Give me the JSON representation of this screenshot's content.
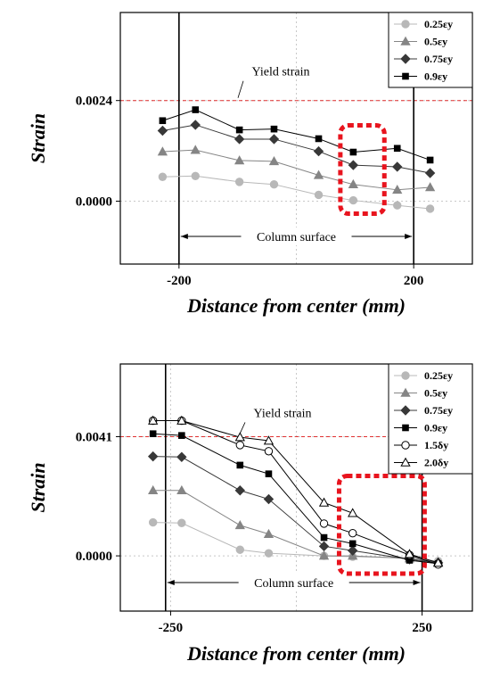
{
  "colors": {
    "yield_line": "#e03030",
    "highlight_box": "#e8141e",
    "grid": "#c8c8c8",
    "axis": "#000000"
  },
  "chart_data": [
    {
      "type": "line",
      "xlabel": "Distance from center (mm)",
      "ylabel": "Strain",
      "x_ticks": [
        -200,
        200
      ],
      "x_tick_labels": [
        "-200",
        "200"
      ],
      "y_ticks": [
        0.0,
        0.0024
      ],
      "y_tick_labels": [
        "0.0000",
        "0.0024"
      ],
      "xlim": [
        -300,
        300
      ],
      "ylim": [
        -0.0015,
        0.0045
      ],
      "grid": true,
      "legend_position": "top-right",
      "reference_line": {
        "label": "Yield strain",
        "y": 0.0024
      },
      "column_lines": [
        -200,
        200
      ],
      "column_annotation": "Column surface",
      "highlight_x_range": [
        75,
        150
      ],
      "series": [
        {
          "name": "0.25εy",
          "marker": "circle",
          "color": "#b8b8b8",
          "x": [
            -228,
            -172,
            -97,
            -38,
            38,
            97,
            172,
            228
          ],
          "values": [
            0.00058,
            0.0006,
            0.00046,
            0.0004,
            0.00015,
            2e-05,
            -0.0001,
            -0.00018
          ]
        },
        {
          "name": "0.5εy",
          "marker": "triangle",
          "color": "#858585",
          "x": [
            -228,
            -172,
            -97,
            -38,
            38,
            97,
            172,
            228
          ],
          "values": [
            0.00118,
            0.00122,
            0.00097,
            0.00095,
            0.00062,
            0.0004,
            0.00027,
            0.00033
          ]
        },
        {
          "name": "0.75εy",
          "marker": "diamond",
          "color": "#383838",
          "x": [
            -228,
            -172,
            -97,
            -38,
            38,
            97,
            172,
            228
          ],
          "values": [
            0.00168,
            0.00182,
            0.00148,
            0.00148,
            0.00119,
            0.00086,
            0.00082,
            0.00067
          ]
        },
        {
          "name": "0.9εy",
          "marker": "square",
          "color": "#000000",
          "x": [
            -228,
            -172,
            -97,
            -38,
            38,
            97,
            172,
            228
          ],
          "values": [
            0.00192,
            0.00218,
            0.0017,
            0.00172,
            0.00149,
            0.00117,
            0.00126,
            0.00098
          ]
        }
      ]
    },
    {
      "type": "line",
      "xlabel": "Distance from center (mm)",
      "ylabel": "Strain",
      "x_ticks": [
        -250,
        250
      ],
      "x_tick_labels": [
        "-250",
        "250"
      ],
      "y_ticks": [
        0.0,
        0.0041
      ],
      "y_tick_labels": [
        "0.0000",
        "0.0041"
      ],
      "xlim": [
        -350,
        350
      ],
      "ylim": [
        -0.0019,
        0.0066
      ],
      "grid": true,
      "legend_position": "top-right",
      "reference_line": {
        "label": "Yield strain",
        "y": 0.0041
      },
      "column_lines": [
        -260,
        250
      ],
      "column_annotation": "Column surface",
      "highlight_x_range": [
        85,
        255
      ],
      "series": [
        {
          "name": "0.25εy",
          "marker": "circle",
          "color": "#b8b8b8",
          "x": [
            -285,
            -228,
            -112,
            -55,
            55,
            112,
            225,
            282
          ],
          "values": [
            0.00115,
            0.00113,
            0.00021,
            9e-05,
            0.0,
            -3e-05,
            -7e-05,
            -0.00018
          ]
        },
        {
          "name": "0.5εy",
          "marker": "triangle",
          "color": "#858585",
          "x": [
            -285,
            -228,
            -112,
            -55,
            55,
            112,
            225,
            282
          ],
          "values": [
            0.00225,
            0.00225,
            0.00105,
            0.00075,
            0.0,
            0.0,
            -9e-05,
            -0.00021
          ]
        },
        {
          "name": "0.75εy",
          "marker": "diamond",
          "color": "#383838",
          "x": [
            -285,
            -228,
            -112,
            -55,
            55,
            112,
            225,
            282
          ],
          "values": [
            0.00342,
            0.0034,
            0.00225,
            0.00195,
            0.00033,
            0.00018,
            -0.00012,
            -0.00024
          ]
        },
        {
          "name": "0.9εy",
          "marker": "square",
          "color": "#000000",
          "x": [
            -285,
            -228,
            -112,
            -55,
            55,
            112,
            225,
            282
          ],
          "values": [
            0.0042,
            0.00414,
            0.00312,
            0.00282,
            0.00063,
            0.00042,
            -0.00015,
            -0.00027
          ]
        },
        {
          "name": "1.5δy",
          "marker": "circle-open",
          "color": "#000000",
          "x": [
            -285,
            -228,
            -112,
            -55,
            55,
            112,
            225,
            282
          ],
          "values": [
            0.00465,
            0.00465,
            0.00381,
            0.0036,
            0.00111,
            0.00078,
            3e-05,
            -0.0003
          ]
        },
        {
          "name": "2.0δy",
          "marker": "triangle-open",
          "color": "#000000",
          "x": [
            -285,
            -228,
            -112,
            -55,
            55,
            112,
            225,
            282
          ],
          "values": [
            0.00465,
            0.00465,
            0.00408,
            0.00396,
            0.00183,
            0.00147,
            6e-05,
            -0.00024
          ]
        }
      ]
    }
  ]
}
